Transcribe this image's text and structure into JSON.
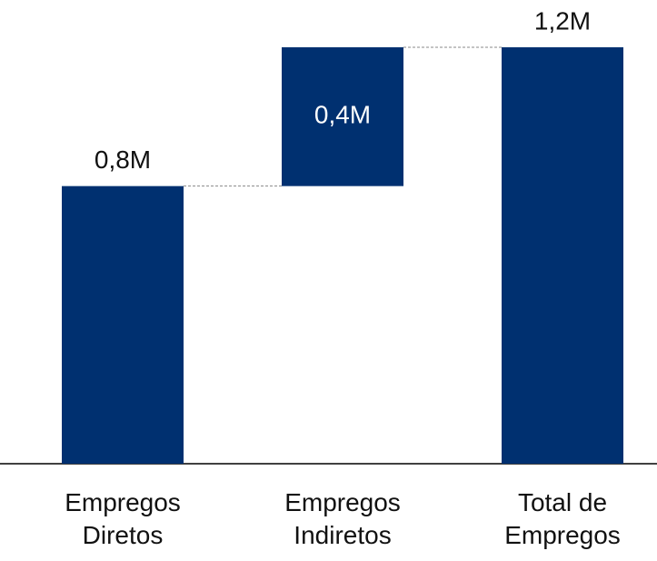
{
  "chart_data": {
    "type": "waterfall",
    "categories": [
      "Empregos Diretos",
      "Empregos Indiretos",
      "Total de Empregos"
    ],
    "values": [
      0.8,
      0.4,
      1.2
    ],
    "value_labels": [
      "0,8M",
      "0,4M",
      "1,2M"
    ],
    "measure": [
      "absolute",
      "relative",
      "total"
    ],
    "color": "#003070"
  }
}
